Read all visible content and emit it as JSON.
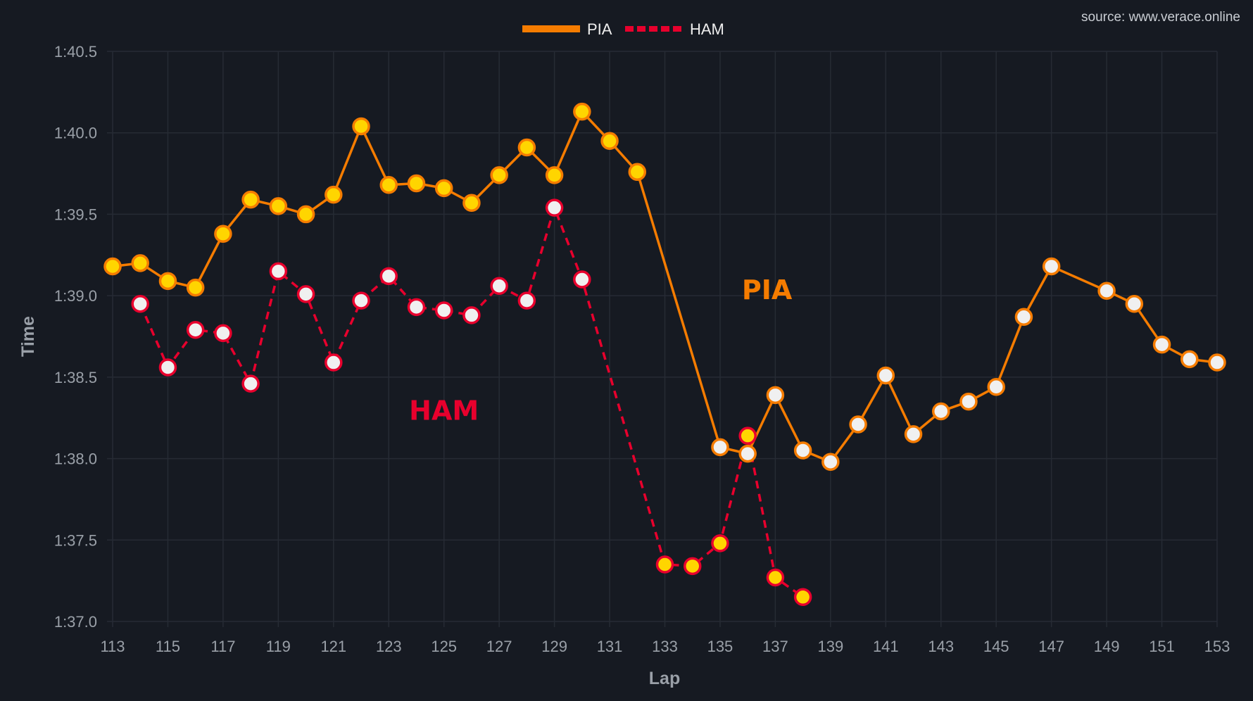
{
  "watermark": "source: www.verace.online",
  "chart_data": {
    "type": "line",
    "title": "",
    "xlabel": "Lap",
    "ylabel": "Time",
    "xlim": [
      113,
      153
    ],
    "ylim": [
      97.0,
      100.5
    ],
    "x_ticks": [
      113,
      115,
      117,
      119,
      121,
      123,
      125,
      127,
      129,
      131,
      133,
      135,
      137,
      139,
      141,
      143,
      145,
      147,
      149,
      151,
      153
    ],
    "y_ticks": [
      97.0,
      97.5,
      98.0,
      98.5,
      99.0,
      99.5,
      100.0,
      100.5
    ],
    "y_tick_labels": [
      "1:37.0",
      "1:37.5",
      "1:38.0",
      "1:38.5",
      "1:39.0",
      "1:39.5",
      "1:40.0",
      "1:40.5"
    ],
    "grid": true,
    "legend": {
      "placement": "top-center",
      "entries": [
        "PIA",
        "HAM"
      ]
    },
    "colors": {
      "background": "#161a22",
      "grid": "#262b34",
      "tick": "#9aa0a8",
      "PIA": "#f57c00",
      "HAM": "#e8002d",
      "marker_yellow": "#ffd500",
      "marker_white": "#f0f0f0"
    },
    "series": [
      {
        "name": "PIA",
        "line_style": "solid",
        "points": [
          {
            "lap": 113,
            "time": 99.18,
            "marker": "yellow"
          },
          {
            "lap": 114,
            "time": 99.2,
            "marker": "yellow"
          },
          {
            "lap": 115,
            "time": 99.09,
            "marker": "yellow"
          },
          {
            "lap": 116,
            "time": 99.05,
            "marker": "yellow"
          },
          {
            "lap": 117,
            "time": 99.38,
            "marker": "yellow"
          },
          {
            "lap": 118,
            "time": 99.59,
            "marker": "yellow"
          },
          {
            "lap": 119,
            "time": 99.55,
            "marker": "yellow"
          },
          {
            "lap": 120,
            "time": 99.5,
            "marker": "yellow"
          },
          {
            "lap": 121,
            "time": 99.62,
            "marker": "yellow"
          },
          {
            "lap": 122,
            "time": 100.04,
            "marker": "yellow"
          },
          {
            "lap": 123,
            "time": 99.68,
            "marker": "yellow"
          },
          {
            "lap": 124,
            "time": 99.69,
            "marker": "yellow"
          },
          {
            "lap": 125,
            "time": 99.66,
            "marker": "yellow"
          },
          {
            "lap": 126,
            "time": 99.57,
            "marker": "yellow"
          },
          {
            "lap": 127,
            "time": 99.74,
            "marker": "yellow"
          },
          {
            "lap": 128,
            "time": 99.91,
            "marker": "yellow"
          },
          {
            "lap": 129,
            "time": 99.74,
            "marker": "yellow"
          },
          {
            "lap": 130,
            "time": 100.13,
            "marker": "yellow"
          },
          {
            "lap": 131,
            "time": 99.95,
            "marker": "yellow"
          },
          {
            "lap": 132,
            "time": 99.76,
            "marker": "yellow"
          },
          {
            "lap": 135,
            "time": 98.07,
            "marker": "white"
          },
          {
            "lap": 136,
            "time": 98.03,
            "marker": "white"
          },
          {
            "lap": 137,
            "time": 98.39,
            "marker": "white"
          },
          {
            "lap": 138,
            "time": 98.05,
            "marker": "white"
          },
          {
            "lap": 139,
            "time": 97.98,
            "marker": "white"
          },
          {
            "lap": 140,
            "time": 98.21,
            "marker": "white"
          },
          {
            "lap": 141,
            "time": 98.51,
            "marker": "white"
          },
          {
            "lap": 142,
            "time": 98.15,
            "marker": "white"
          },
          {
            "lap": 143,
            "time": 98.29,
            "marker": "white"
          },
          {
            "lap": 144,
            "time": 98.35,
            "marker": "white"
          },
          {
            "lap": 145,
            "time": 98.44,
            "marker": "white"
          },
          {
            "lap": 146,
            "time": 98.87,
            "marker": "white"
          },
          {
            "lap": 147,
            "time": 99.18,
            "marker": "white"
          },
          {
            "lap": 149,
            "time": 99.03,
            "marker": "white"
          },
          {
            "lap": 150,
            "time": 98.95,
            "marker": "white"
          },
          {
            "lap": 151,
            "time": 98.7,
            "marker": "white"
          },
          {
            "lap": 152,
            "time": 98.61,
            "marker": "white"
          },
          {
            "lap": 153,
            "time": 98.59,
            "marker": "white"
          }
        ]
      },
      {
        "name": "HAM",
        "line_style": "dashed",
        "points": [
          {
            "lap": 114,
            "time": 98.95,
            "marker": "white"
          },
          {
            "lap": 115,
            "time": 98.56,
            "marker": "white"
          },
          {
            "lap": 116,
            "time": 98.79,
            "marker": "white"
          },
          {
            "lap": 117,
            "time": 98.77,
            "marker": "white"
          },
          {
            "lap": 118,
            "time": 98.46,
            "marker": "white"
          },
          {
            "lap": 119,
            "time": 99.15,
            "marker": "white"
          },
          {
            "lap": 120,
            "time": 99.01,
            "marker": "white"
          },
          {
            "lap": 121,
            "time": 98.59,
            "marker": "white"
          },
          {
            "lap": 122,
            "time": 98.97,
            "marker": "white"
          },
          {
            "lap": 123,
            "time": 99.12,
            "marker": "white"
          },
          {
            "lap": 124,
            "time": 98.93,
            "marker": "white"
          },
          {
            "lap": 125,
            "time": 98.91,
            "marker": "white"
          },
          {
            "lap": 126,
            "time": 98.88,
            "marker": "white"
          },
          {
            "lap": 127,
            "time": 99.06,
            "marker": "white"
          },
          {
            "lap": 128,
            "time": 98.97,
            "marker": "white"
          },
          {
            "lap": 129,
            "time": 99.54,
            "marker": "white"
          },
          {
            "lap": 130,
            "time": 99.1,
            "marker": "white"
          },
          {
            "lap": 133,
            "time": 97.35,
            "marker": "yellow"
          },
          {
            "lap": 134,
            "time": 97.34,
            "marker": "yellow"
          },
          {
            "lap": 135,
            "time": 97.48,
            "marker": "yellow"
          },
          {
            "lap": 136,
            "time": 98.14,
            "marker": "yellow"
          },
          {
            "lap": 137,
            "time": 97.27,
            "marker": "yellow"
          },
          {
            "lap": 138,
            "time": 97.15,
            "marker": "yellow"
          }
        ]
      }
    ],
    "annotations": [
      {
        "text": "PIA",
        "lap": 136.7,
        "time": 99.03,
        "color": "#f57c00"
      },
      {
        "text": "HAM",
        "lap": 125.0,
        "time": 98.29,
        "color": "#e8002d"
      }
    ]
  }
}
